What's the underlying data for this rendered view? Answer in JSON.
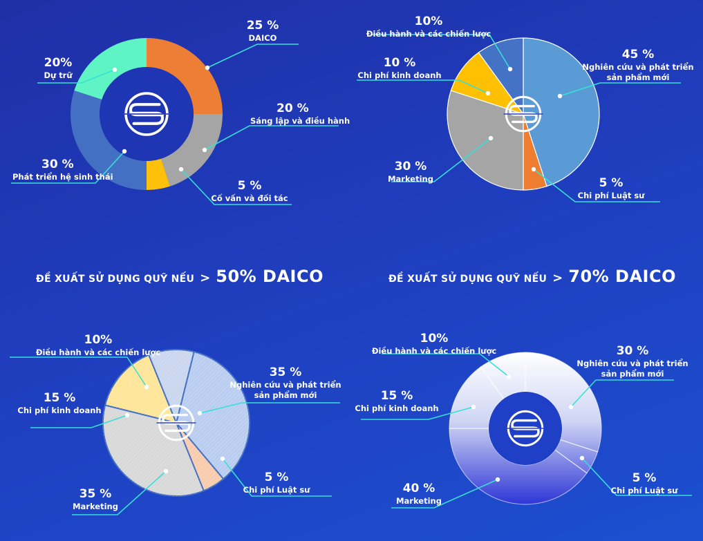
{
  "headings": [
    {
      "text": "ĐỀ XUẤT SỬ DỤNG QUỸ NẾU",
      "arrow": ">",
      "value": "50% DAICO"
    },
    {
      "text": "ĐỀ XUẤT SỬ DỤNG QUỸ NẾU",
      "arrow": ">",
      "value": "70% DAICO"
    }
  ],
  "logo_icon": "s-coin-logo-icon",
  "chart_data": [
    {
      "type": "pie",
      "style": "donut",
      "slices": [
        {
          "pct": "25 %",
          "label": [
            "DAICO"
          ],
          "value": 25,
          "color": "#ec7e35"
        },
        {
          "pct": "20 %",
          "label": [
            "Sáng lập và điều hành"
          ],
          "value": 20,
          "color": "#a5a5a5"
        },
        {
          "pct": "5 %",
          "label": [
            "Cố vấn và đối tác"
          ],
          "value": 5,
          "color": "#fec10b"
        },
        {
          "pct": "30 %",
          "label": [
            "Phát triển hệ sinh thái"
          ],
          "value": 30,
          "color": "#4470c4"
        },
        {
          "pct": "20%",
          "label": [
            "Dự trữ"
          ],
          "value": 20,
          "color": "#5ff4c3"
        }
      ]
    },
    {
      "type": "pie",
      "slices": [
        {
          "pct": "45 %",
          "label": [
            "Nghiên cứu và phát triển",
            "sản phẩm mới"
          ],
          "value": 45,
          "color": "#5b9bd5"
        },
        {
          "pct": "5 %",
          "label": [
            "Chi phí Luật sư"
          ],
          "value": 5,
          "color": "#ec7d31"
        },
        {
          "pct": "30 %",
          "label": [
            "Marketing"
          ],
          "value": 30,
          "color": "#a5a5a5"
        },
        {
          "pct": "10 %",
          "label": [
            "Chi phí kinh doanh"
          ],
          "value": 10,
          "color": "#fec000"
        },
        {
          "pct": "10%",
          "label": [
            "Điều hành và các chiến lược"
          ],
          "value": 10,
          "color": "#4472c4"
        }
      ]
    },
    {
      "type": "pie",
      "style": "pastel",
      "slices": [
        {
          "pct": "35 %",
          "label": [
            "Nghiên cứu và phát triển",
            "sản phẩm mới"
          ],
          "value": 35,
          "color": "#b9cdf0"
        },
        {
          "pct": "5 %",
          "label": [
            "Chi phí Luật sư"
          ],
          "value": 5,
          "color": "#f8cbad"
        },
        {
          "pct": "35 %",
          "label": [
            "Marketing"
          ],
          "value": 35,
          "color": "#d8d8d8"
        },
        {
          "pct": "15 %",
          "label": [
            "Chi phí kinh doanh"
          ],
          "value": 15,
          "color": "#fee598"
        },
        {
          "pct": "10%",
          "label": [
            "Điều hành và các chiến lược"
          ],
          "value": 10,
          "color": "#c9d6ee"
        }
      ]
    },
    {
      "type": "pie",
      "style": "gradient-donut",
      "slices": [
        {
          "pct": "30 %",
          "label": [
            "Nghiên cứu và phát triển",
            "sản phẩm mới"
          ],
          "value": 30
        },
        {
          "pct": "5 %",
          "label": [
            "Chi phí Luật sư"
          ],
          "value": 5
        },
        {
          "pct": "40 %",
          "label": [
            "Marketing"
          ],
          "value": 40
        },
        {
          "pct": "15 %",
          "label": [
            "Chi phí kinh doanh"
          ],
          "value": 15
        },
        {
          "pct": "10%",
          "label": [
            "Điều hành và các chiến lược"
          ],
          "value": 10
        }
      ]
    }
  ]
}
